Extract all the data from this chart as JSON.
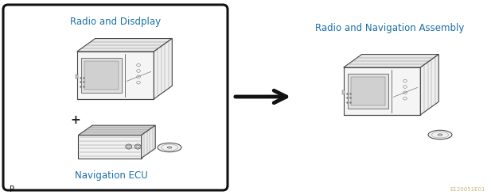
{
  "title_left_box": "Radio and Disdplay",
  "label_nav_ecu": "Navigation ECU",
  "title_right": "Radio and Navigation Assembly",
  "code": "E120051E01",
  "page": "P",
  "bg_color": "#ffffff",
  "box_border_color": "#111111",
  "text_color_blue": "#1a6fa8",
  "text_color_dark": "#111111",
  "arrow_color": "#111111",
  "device_edge": "#444444",
  "device_detail": "#777777",
  "figsize": [
    6.17,
    2.46
  ],
  "dpi": 100
}
